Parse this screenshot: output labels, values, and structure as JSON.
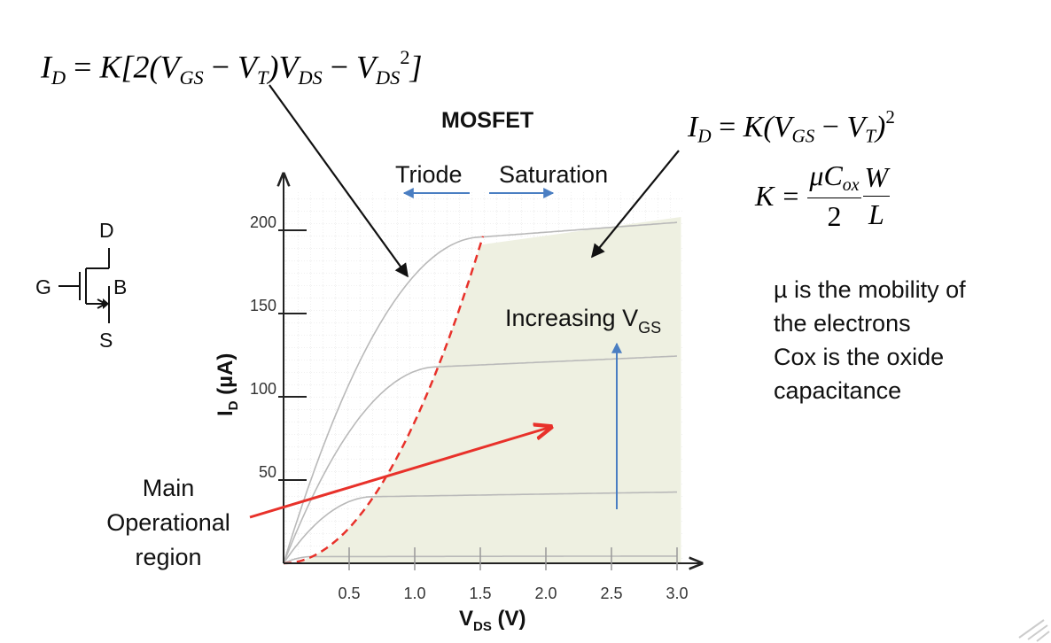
{
  "title": "MOSFET",
  "equations": {
    "triode": {
      "lhs": "I",
      "lhs_sub": "D",
      "eq": "=",
      "body_a": "K[2(V",
      "gs": "GS",
      "minus1": "−",
      "vt": "V",
      "t": "T",
      "paren": ")V",
      "ds1": "DS",
      "minus2": "−",
      "v2": "V",
      "ds2": "DS",
      "sq": "2",
      "close": "]"
    },
    "saturation": {
      "lhs": "I",
      "lhs_sub": "D",
      "eq": "=",
      "body_a": "K(V",
      "gs": "GS",
      "minus": "−",
      "vt": "V",
      "t": "T",
      "close": ")",
      "sq": "2"
    },
    "k": {
      "lhs": "K",
      "eq": "=",
      "num_mu": "μC",
      "num_ox": "ox",
      "num_w": "W",
      "den_2": "2",
      "den_l": "L"
    }
  },
  "region_labels": {
    "triode": "Triode",
    "saturation": "Saturation",
    "increasing_vgs_main": "Increasing V",
    "increasing_vgs_sub": "GS"
  },
  "notes": [
    "µ is the mobility of",
    "the electrons",
    "Cox is the oxide",
    "capacitance"
  ],
  "main_region": [
    "Main",
    "Operational",
    "region"
  ],
  "symbol": {
    "d": "D",
    "g": "G",
    "b": "B",
    "s": "S"
  },
  "axes": {
    "y_label_main": "I",
    "y_label_sub": "D",
    "y_label_unit": " (µA)",
    "x_label_main": "V",
    "x_label_sub": "DS",
    "x_label_unit": " (V)",
    "y_ticks": [
      "200",
      "150",
      "100",
      "50"
    ],
    "x_ticks": [
      "0.5",
      "1.0",
      "1.5",
      "2.0",
      "2.5",
      "3.0"
    ]
  },
  "colors": {
    "saturation_fill": "#eef0e1",
    "boundary": "#e8312a",
    "main_arrow": "#e8312a",
    "vgs_arrow": "#4a7ec2",
    "curve": "#b9b9b9",
    "axis": "#222222"
  }
}
